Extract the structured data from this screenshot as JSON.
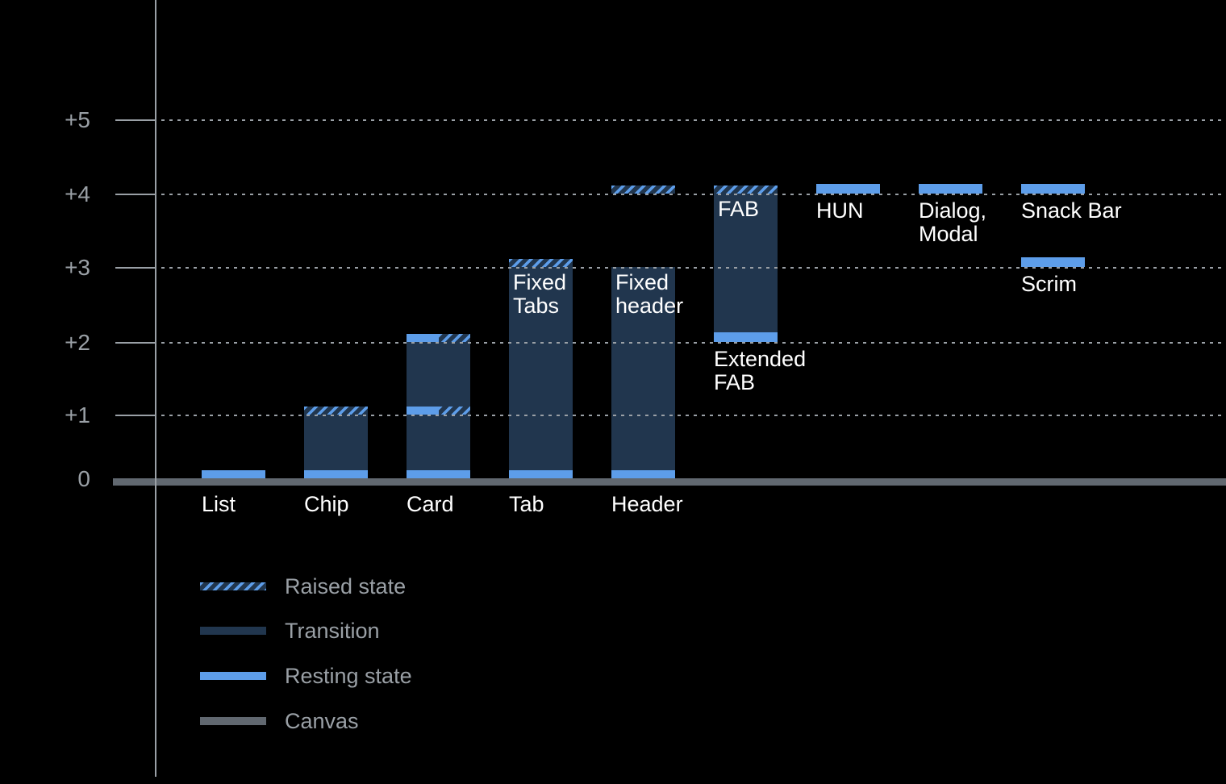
{
  "chart_data": {
    "type": "bar",
    "title": "",
    "xlabel": "",
    "ylabel": "",
    "ylim": [
      0,
      5.5
    ],
    "grid": "dotted horizontal lines at each elevation level",
    "y_axis": {
      "ticks": [
        {
          "value": 0,
          "label": "0"
        },
        {
          "value": 1,
          "label": "+1"
        },
        {
          "value": 2,
          "label": "+2"
        },
        {
          "value": 3,
          "label": "+3"
        },
        {
          "value": 4,
          "label": "+4"
        },
        {
          "value": 5,
          "label": "+5"
        }
      ]
    },
    "colors": {
      "background": "#000000",
      "resting_state": "#5d9de9",
      "transition": "#21364e",
      "raised_state_stripe": "#5d9de9",
      "canvas": "#616870",
      "grid_and_axis_text": "#9aa0a6",
      "bar_text": "#ffffff"
    },
    "legend": {
      "position": "bottom-left",
      "items": [
        {
          "key": "raised",
          "label": "Raised state"
        },
        {
          "key": "transition",
          "label": "Transition"
        },
        {
          "key": "resting",
          "label": "Resting state"
        },
        {
          "key": "canvas",
          "label": "Canvas"
        }
      ]
    },
    "columns": [
      {
        "name": "list",
        "axis_label": "List",
        "segments": [
          {
            "kind": "resting",
            "from": 0,
            "to": 0.13
          }
        ]
      },
      {
        "name": "chip",
        "axis_label": "Chip",
        "segments": [
          {
            "kind": "resting",
            "from": 0,
            "to": 0.13
          },
          {
            "kind": "transition",
            "from": 0.13,
            "to": 1
          },
          {
            "kind": "raised",
            "from": 1,
            "to": 1.11
          }
        ]
      },
      {
        "name": "card",
        "axis_label": "Card",
        "segments": [
          {
            "kind": "resting",
            "from": 0,
            "to": 0.13
          },
          {
            "kind": "transition",
            "from": 0.13,
            "to": 2
          },
          {
            "kind": "split",
            "from": 1,
            "to": 1.11
          },
          {
            "kind": "split",
            "from": 2,
            "to": 2.11
          }
        ]
      },
      {
        "name": "tab",
        "axis_label": "Tab",
        "inside_label": {
          "lines": [
            "Fixed",
            "Tabs"
          ],
          "at": 3
        },
        "segments": [
          {
            "kind": "resting",
            "from": 0,
            "to": 0.13
          },
          {
            "kind": "transition",
            "from": 0.13,
            "to": 3
          },
          {
            "kind": "raised",
            "from": 3,
            "to": 3.11
          }
        ]
      },
      {
        "name": "header",
        "axis_label": "Header",
        "inside_label": {
          "lines": [
            "Fixed",
            "header"
          ],
          "at": 3
        },
        "segments": [
          {
            "kind": "resting",
            "from": 0,
            "to": 0.13
          },
          {
            "kind": "transition",
            "from": 0.13,
            "to": 3
          },
          {
            "kind": "raised",
            "from": 4,
            "to": 4.11
          }
        ]
      },
      {
        "name": "fab",
        "inside_label": {
          "lines": [
            "FAB"
          ],
          "at": 4
        },
        "segments": [
          {
            "kind": "resting",
            "from": 2,
            "to": 2.13,
            "label_below": [
              "Extended",
              "FAB"
            ]
          },
          {
            "kind": "transition",
            "from": 2.13,
            "to": 4
          },
          {
            "kind": "raised",
            "from": 4,
            "to": 4.11
          }
        ]
      },
      {
        "name": "hun",
        "segments": [
          {
            "kind": "resting",
            "from": 4,
            "to": 4.13,
            "label_below": [
              "HUN"
            ]
          }
        ]
      },
      {
        "name": "dialog-modal",
        "segments": [
          {
            "kind": "resting",
            "from": 4,
            "to": 4.13,
            "label_below": [
              "Dialog,",
              "Modal"
            ]
          }
        ]
      },
      {
        "name": "snack-bar-scrim",
        "segments": [
          {
            "kind": "resting",
            "from": 4,
            "to": 4.13,
            "label_below": [
              "Snack Bar"
            ]
          },
          {
            "kind": "resting",
            "from": 3,
            "to": 3.13,
            "label_below": [
              "Scrim"
            ]
          }
        ]
      }
    ]
  }
}
